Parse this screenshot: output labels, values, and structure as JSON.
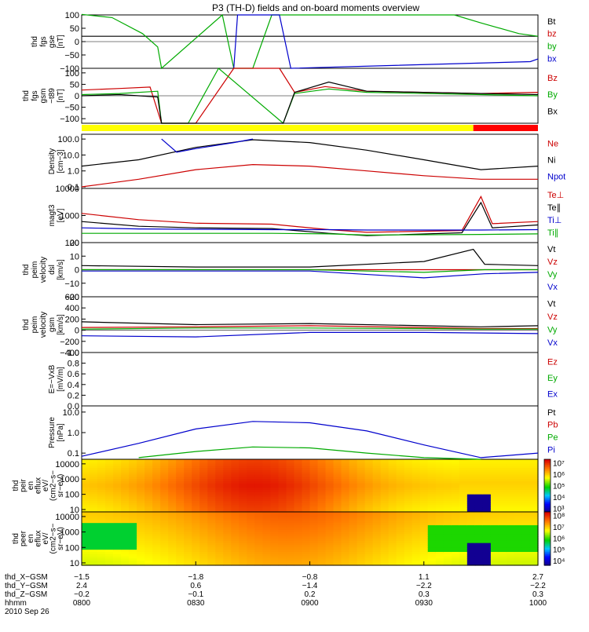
{
  "title": "P3 (TH-D) fields and on-board moments overview",
  "panels": [
    {
      "id": "fgs-gse",
      "ylabel": [
        "thd",
        "fgs",
        "gse",
        "[nT]"
      ],
      "scale": "linear",
      "yticks": [
        "100",
        "50",
        "0",
        "−50",
        "−100"
      ],
      "ytick_values": [
        100,
        50,
        0,
        -50,
        -100
      ],
      "ylim": [
        -100,
        100
      ],
      "legend": [
        {
          "t": "Bt",
          "c": "#000000"
        },
        {
          "t": "bz",
          "c": "#cc0000"
        },
        {
          "t": "by",
          "c": "#00aa00"
        },
        {
          "t": "bx",
          "c": "#0000cc"
        }
      ]
    },
    {
      "id": "fgs-gsm",
      "ylabel": [
        "thd",
        "fgs",
        "gsm",
        "−t89",
        "[nT]"
      ],
      "scale": "linear",
      "yticks": [
        "100",
        "50",
        "0",
        "−50",
        "−100"
      ],
      "ytick_values": [
        100,
        50,
        0,
        -50,
        -100
      ],
      "ylim": [
        -120,
        120
      ],
      "legend": [
        {
          "t": "Bz",
          "c": "#cc0000"
        },
        {
          "t": "By",
          "c": "#00aa00"
        },
        {
          "t": "Bx",
          "c": "#000000"
        }
      ]
    },
    {
      "id": "density",
      "ylabel": [
        "Density",
        "[cm−3]"
      ],
      "scale": "log",
      "yticks": [
        "100.0",
        "10.0",
        "1.0",
        "0.1"
      ],
      "ytick_values": [
        100,
        10,
        1,
        0.1
      ],
      "ylim": [
        0.08,
        200
      ],
      "legend": [
        {
          "t": "Ne",
          "c": "#cc0000"
        },
        {
          "t": "Ni",
          "c": "#000000"
        },
        {
          "t": "Npot",
          "c": "#0000cc"
        }
      ]
    },
    {
      "id": "temperature",
      "ylabel": [
        "magt3",
        "[eV]"
      ],
      "scale": "log",
      "yticks": [
        "10000",
        "1000",
        "100"
      ],
      "ytick_values": [
        10000,
        1000,
        100
      ],
      "ylim": [
        100,
        10000
      ],
      "legend": [
        {
          "t": "Te⊥",
          "c": "#cc0000"
        },
        {
          "t": "Te∥",
          "c": "#000000"
        },
        {
          "t": "Ti⊥",
          "c": "#0000cc"
        },
        {
          "t": "Ti∥",
          "c": "#00aa00"
        }
      ]
    },
    {
      "id": "velocity-e",
      "ylabel": [
        "thd",
        "peim",
        "velocity",
        "dsl",
        "[km/s]"
      ],
      "scale": "linear",
      "yticks": [
        "20",
        "10",
        "0",
        "−10",
        "−20"
      ],
      "ytick_values": [
        20,
        10,
        0,
        -10,
        -20
      ],
      "ylim": [
        -20,
        20
      ],
      "legend": [
        {
          "t": "Vt",
          "c": "#000000"
        },
        {
          "t": "Vz",
          "c": "#cc0000"
        },
        {
          "t": "Vy",
          "c": "#00aa00"
        },
        {
          "t": "Vx",
          "c": "#0000cc"
        }
      ]
    },
    {
      "id": "velocity-i",
      "ylabel": [
        "thd",
        "peim",
        "velocity",
        "gsm",
        "[km/s]"
      ],
      "scale": "linear",
      "yticks": [
        "600",
        "400",
        "200",
        "0",
        "−200",
        "−400"
      ],
      "ytick_values": [
        600,
        400,
        200,
        0,
        -200,
        -400
      ],
      "ylim": [
        -400,
        600
      ],
      "legend": [
        {
          "t": "Vt",
          "c": "#000000"
        },
        {
          "t": "Vz",
          "c": "#cc0000"
        },
        {
          "t": "Vy",
          "c": "#00aa00"
        },
        {
          "t": "Vx",
          "c": "#0000cc"
        }
      ]
    },
    {
      "id": "efield",
      "ylabel": [
        "E=−VxB",
        "[mV/m]"
      ],
      "scale": "linear",
      "yticks": [
        "1.0",
        "0.8",
        "0.6",
        "0.4",
        "0.2",
        "0.0"
      ],
      "ytick_values": [
        1.0,
        0.8,
        0.6,
        0.4,
        0.2,
        0.0
      ],
      "ylim": [
        0,
        1
      ],
      "legend": [
        {
          "t": "Ez",
          "c": "#cc0000"
        },
        {
          "t": "Ey",
          "c": "#00aa00"
        },
        {
          "t": "Ex",
          "c": "#0000cc"
        }
      ]
    },
    {
      "id": "pressure",
      "ylabel": [
        "Pressure",
        "[nPa]"
      ],
      "scale": "log",
      "yticks": [
        "10.0",
        "1.0",
        "0.1"
      ],
      "ytick_values": [
        10,
        1,
        0.1
      ],
      "ylim": [
        0.05,
        20
      ],
      "legend": [
        {
          "t": "Pt",
          "c": "#000000"
        },
        {
          "t": "Pb",
          "c": "#cc0000"
        },
        {
          "t": "Pe",
          "c": "#00aa00"
        },
        {
          "t": "Pi",
          "c": "#0000cc"
        }
      ]
    },
    {
      "id": "ion-spectrogram",
      "ylabel": [
        "thd",
        "peir",
        "en",
        "eflux",
        "eV/",
        "(cm2−s−",
        "sr−eV)"
      ],
      "scale": "log",
      "yticks": [
        "10000",
        "1000",
        "100",
        "10"
      ],
      "ytick_values": [
        10000,
        1000,
        100,
        10
      ],
      "ylim": [
        7,
        20000
      ],
      "colorbar": {
        "labels": [
          "10⁷",
          "10⁶",
          "10⁵",
          "10⁴",
          "10³"
        ],
        "exponents": [
          7,
          6,
          5,
          4,
          3
        ],
        "range": [
          2.7,
          7.3
        ]
      }
    },
    {
      "id": "electron-spectrogram",
      "ylabel": [
        "thd",
        "peer",
        "en",
        "eflux",
        "eV/",
        "(cm2−s−",
        "sr−eV)"
      ],
      "scale": "log",
      "yticks": [
        "10000",
        "1000",
        "100",
        "10"
      ],
      "ytick_values": [
        10000,
        1000,
        100,
        10
      ],
      "ylim": [
        7,
        20000
      ],
      "colorbar": {
        "labels": [
          "10⁸",
          "10⁷",
          "10⁶",
          "10⁵",
          "10⁴"
        ],
        "exponents": [
          8,
          7,
          6,
          5,
          4
        ],
        "range": [
          3.6,
          8.3
        ]
      }
    }
  ],
  "xaxis": {
    "row_labels": [
      "thd_X−GSM",
      "thd_Y−GSM",
      "thd_Z−GSM",
      "hhmm",
      "2010 Sep 26"
    ],
    "ticks": [
      {
        "x": "−1.5",
        "y": "2.4",
        "z": "−0.2",
        "t": "0800"
      },
      {
        "x": "−1.8",
        "y": "0.6",
        "z": "−0.1",
        "t": "0830"
      },
      {
        "x": "−0.8",
        "y": "−1.4",
        "z": "0.2",
        "t": "0900"
      },
      {
        "x": "1.1",
        "y": "−2.2",
        "z": "0.3",
        "t": "0930"
      },
      {
        "x": "2.7",
        "y": "−2.2",
        "z": "0.3",
        "t": "1000"
      }
    ]
  },
  "chart_data": {
    "type": "line",
    "title": "P3 (TH-D) fields and on-board moments overview",
    "x_unit": "hhmm",
    "x_range": [
      "0800",
      "1000"
    ],
    "status_bar": [
      {
        "from": "0800",
        "to": "0943",
        "color": "#ffff00"
      },
      {
        "from": "0943",
        "to": "1000",
        "color": "#ff0000"
      }
    ],
    "panels": [
      {
        "id": "fgs-gse",
        "series": [
          {
            "name": "Bt",
            "color": "#000000",
            "x": [
              "0800",
              "1000"
            ],
            "y": [
              20,
              20
            ]
          },
          {
            "name": "by",
            "color": "#00aa00",
            "x": [
              "0800",
              "0808",
              "0816",
              "0820",
              "0821",
              "0837",
              "0840",
              "0845",
              "0850",
              "0938",
              "0945",
              "0955",
              "1000"
            ],
            "y": [
              102,
              90,
              30,
              -20,
              -100,
              100,
              -100,
              -100,
              100,
              100,
              70,
              30,
              20
            ]
          },
          {
            "name": "bx",
            "color": "#0000cc",
            "x": [
              "0840",
              "0841",
              "0852",
              "0855",
              "0958",
              "1000"
            ],
            "y": [
              -100,
              100,
              100,
              -100,
              -75,
              -65
            ]
          }
        ]
      },
      {
        "id": "fgs-gsm",
        "series": [
          {
            "name": "Bz",
            "color": "#cc0000",
            "x": [
              "0800",
              "0810",
              "0818",
              "0821",
              "0830",
              "0840",
              "0852",
              "0856",
              "0904",
              "0915",
              "0945",
              "1000"
            ],
            "y": [
              25,
              32,
              38,
              -120,
              -120,
              120,
              120,
              15,
              40,
              20,
              10,
              15
            ]
          },
          {
            "name": "By",
            "color": "#00aa00",
            "x": [
              "0800",
              "0810",
              "0820",
              "0821",
              "0828",
              "0836",
              "0853",
              "0856",
              "0905",
              "0915",
              "0945",
              "1000"
            ],
            "y": [
              5,
              10,
              20,
              -120,
              -120,
              120,
              -120,
              10,
              30,
              15,
              5,
              0
            ]
          },
          {
            "name": "Bx",
            "color": "#000000",
            "x": [
              "0800",
              "0810",
              "0820",
              "0821",
              "0853",
              "0856",
              "0905",
              "0915",
              "0945",
              "1000"
            ],
            "y": [
              0,
              5,
              -5,
              -120,
              -120,
              15,
              60,
              20,
              10,
              5
            ]
          }
        ]
      },
      {
        "id": "density",
        "series": [
          {
            "name": "Ni",
            "color": "#000000",
            "x": [
              "0800",
              "0815",
              "0830",
              "0845",
              "0900",
              "0915",
              "0930",
              "0945",
              "1000"
            ],
            "y": [
              2,
              5,
              30,
              90,
              60,
              20,
              5,
              1.2,
              2
            ]
          },
          {
            "name": "Ne",
            "color": "#cc0000",
            "x": [
              "0800",
              "0815",
              "0830",
              "0845",
              "0900",
              "0915",
              "0930",
              "0945",
              "1000"
            ],
            "y": [
              0.1,
              0.3,
              1.2,
              2.5,
              2,
              1,
              0.5,
              0.3,
              0.3
            ]
          },
          {
            "name": "Npot",
            "color": "#0000cc",
            "x": [
              "0821",
              "0825",
              "0830",
              "0840",
              "0845"
            ],
            "y": [
              100,
              15,
              25,
              60,
              100
            ]
          }
        ]
      },
      {
        "id": "temperature",
        "series": [
          {
            "name": "Te⊥",
            "color": "#cc0000",
            "x": [
              "0800",
              "0815",
              "0830",
              "0850",
              "0905",
              "0915",
              "0940",
              "0945",
              "0948",
              "1000"
            ],
            "y": [
              1200,
              700,
              520,
              480,
              300,
              240,
              280,
              5000,
              500,
              600
            ]
          },
          {
            "name": "Te∥",
            "color": "#000000",
            "x": [
              "0800",
              "0815",
              "0830",
              "0850",
              "0905",
              "0915",
              "0940",
              "0945",
              "0948",
              "1000"
            ],
            "y": [
              600,
              400,
              350,
              330,
              220,
              180,
              230,
              3000,
              350,
              450
            ]
          },
          {
            "name": "Ti⊥",
            "color": "#0000cc",
            "x": [
              "0800",
              "0815",
              "0850",
              "0905",
              "0915",
              "0945",
              "1000"
            ],
            "y": [
              350,
              320,
              300,
              300,
              290,
              290,
              300
            ]
          },
          {
            "name": "Ti∥",
            "color": "#00aa00",
            "x": [
              "0800",
              "0850",
              "0905",
              "0915",
              "0945",
              "1000"
            ],
            "y": [
              220,
              220,
              210,
              190,
              200,
              210
            ]
          }
        ]
      },
      {
        "id": "velocity-e",
        "series": [
          {
            "name": "Vt",
            "color": "#000000",
            "x": [
              "0800",
              "0830",
              "0900",
              "0930",
              "0943",
              "0946",
              "1000"
            ],
            "y": [
              3,
              2,
              2,
              6,
              15,
              4,
              3
            ]
          },
          {
            "name": "Vz",
            "color": "#cc0000",
            "x": [
              "0800",
              "0900",
              "0930",
              "0946",
              "1000"
            ],
            "y": [
              0,
              0,
              0,
              0,
              0
            ]
          },
          {
            "name": "Vy",
            "color": "#00aa00",
            "x": [
              "0800",
              "0900",
              "0930",
              "0946",
              "1000"
            ],
            "y": [
              0,
              0,
              -2,
              0,
              0
            ]
          },
          {
            "name": "Vx",
            "color": "#0000cc",
            "x": [
              "0800",
              "0900",
              "0930",
              "0946",
              "1000"
            ],
            "y": [
              -1,
              -1,
              -6,
              -3,
              -2
            ]
          }
        ]
      },
      {
        "id": "velocity-i",
        "series": [
          {
            "name": "Vt",
            "color": "#000000",
            "x": [
              "0800",
              "0830",
              "0900",
              "0930",
              "0945",
              "1000"
            ],
            "y": [
              150,
              100,
              120,
              80,
              60,
              80
            ]
          },
          {
            "name": "Vz",
            "color": "#cc0000",
            "x": [
              "0800",
              "0830",
              "0900",
              "0930",
              "0945",
              "1000"
            ],
            "y": [
              50,
              60,
              80,
              50,
              30,
              30
            ]
          },
          {
            "name": "Vy",
            "color": "#00aa00",
            "x": [
              "0800",
              "0830",
              "0900",
              "0930",
              "0945",
              "1000"
            ],
            "y": [
              20,
              40,
              40,
              30,
              20,
              20
            ]
          },
          {
            "name": "Vx",
            "color": "#0000cc",
            "x": [
              "0800",
              "0830",
              "0900",
              "0930",
              "0945",
              "1000"
            ],
            "y": [
              -100,
              -120,
              -40,
              -40,
              -50,
              -60
            ]
          }
        ]
      },
      {
        "id": "efield",
        "series": []
      },
      {
        "id": "pressure",
        "series": [
          {
            "name": "Pi",
            "color": "#0000cc",
            "x": [
              "0800",
              "0815",
              "0830",
              "0845",
              "0900",
              "0915",
              "0930",
              "0945",
              "1000"
            ],
            "y": [
              0.07,
              0.3,
              1.5,
              3.5,
              3,
              1.2,
              0.25,
              0.06,
              0.1
            ]
          },
          {
            "name": "Pe",
            "color": "#00aa00",
            "x": [
              "0815",
              "0830",
              "0845",
              "0900",
              "0915",
              "0930",
              "0945"
            ],
            "y": [
              0.06,
              0.12,
              0.2,
              0.18,
              0.1,
              0.06,
              0.05
            ]
          }
        ]
      }
    ]
  }
}
